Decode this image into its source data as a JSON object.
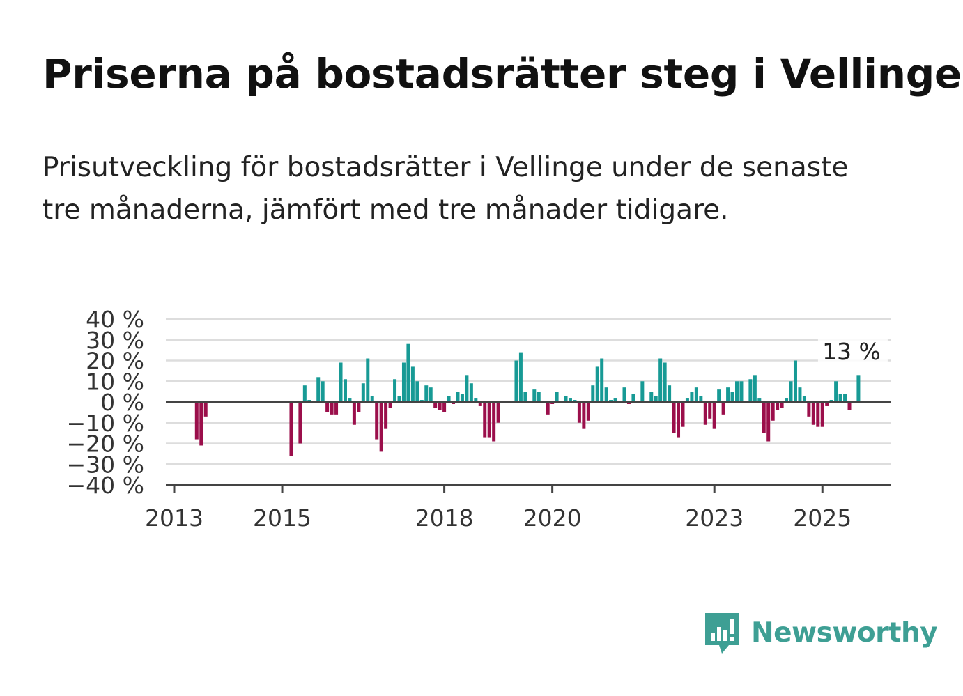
{
  "header": {
    "title": "Priserna på bostadsrätter steg i Vellinge",
    "subtitle": "Prisutveckling för bostadsrätter i Vellinge under de senaste tre månaderna, jämfört med tre månader tidigare."
  },
  "brand": {
    "name": "Newsworthy",
    "icon": "newsworthy-logo-icon"
  },
  "colors": {
    "positive": "#179a95",
    "negative": "#9b0f4b",
    "grid": "#dddddd",
    "axis": "#444444",
    "label": "#333333"
  },
  "chart_data": {
    "type": "bar",
    "title": "",
    "xlabel": "",
    "ylabel": "",
    "ylim": [
      -40,
      40
    ],
    "yticks": [
      40,
      30,
      20,
      10,
      0,
      -10,
      -20,
      -30,
      -40
    ],
    "ytick_labels": [
      "40 %",
      "30 %",
      "20 %",
      "10 %",
      "0 %",
      "−10 %",
      "−20 %",
      "−30 %",
      "−40 %"
    ],
    "xticks": [
      2013,
      2015,
      2018,
      2020,
      2023,
      2025
    ],
    "xtick_labels": [
      "2013",
      "2015",
      "2018",
      "2020",
      "2023",
      "2025"
    ],
    "x_start": "2013-01",
    "annotation": "13 %",
    "grid": true,
    "series": [
      {
        "values": [
          null,
          null,
          null,
          null,
          null,
          -18,
          -21,
          -7,
          null,
          null,
          null,
          null,
          null,
          null,
          null,
          null,
          null,
          null,
          null,
          null,
          null,
          null,
          null,
          null,
          null,
          null,
          -26,
          null,
          -20,
          8,
          1,
          null,
          12,
          10,
          -5,
          -6,
          -6,
          19,
          11,
          2,
          -11,
          -5,
          9,
          21,
          3,
          -18,
          -24,
          -13,
          -3,
          11,
          3,
          19,
          28,
          17,
          10,
          1,
          8,
          7,
          -3,
          -4,
          -5,
          3,
          -1,
          5,
          4,
          13,
          9,
          2,
          -2,
          -17,
          -17,
          -19,
          -10,
          null,
          null,
          null,
          20,
          24,
          5,
          null,
          6,
          5,
          null,
          -6,
          -1,
          5,
          null,
          3,
          2,
          1,
          -10,
          -13,
          -9,
          8,
          17,
          21,
          7,
          1,
          2,
          null,
          7,
          -1,
          4,
          null,
          10,
          null,
          5,
          3,
          21,
          19,
          8,
          -15,
          -17,
          -12,
          2,
          5,
          7,
          3,
          -11,
          -8,
          -13,
          6,
          -6,
          7,
          5,
          10,
          10,
          null,
          11,
          13,
          2,
          -15,
          -19,
          -9,
          -4,
          -3,
          2,
          10,
          20,
          7,
          3,
          -7,
          -11,
          -12,
          -12,
          -2,
          1,
          10,
          4,
          4,
          -4,
          null,
          13
        ]
      }
    ]
  }
}
